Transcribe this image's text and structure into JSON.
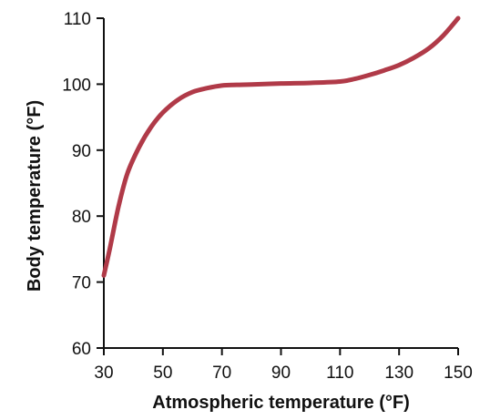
{
  "chart_data": {
    "type": "line",
    "xlabel": "Atmospheric temperature (°F)",
    "ylabel": "Body temperature (°F)",
    "xlim": [
      30,
      150
    ],
    "ylim": [
      60,
      110
    ],
    "x_ticks": [
      30,
      50,
      70,
      90,
      110,
      130,
      150
    ],
    "y_ticks": [
      60,
      70,
      80,
      90,
      100,
      110
    ],
    "x_tick_labels": [
      "30",
      "50",
      "70",
      "90",
      "110",
      "130",
      "150"
    ],
    "y_tick_labels": [
      "60",
      "70",
      "80",
      "90",
      "100",
      "110"
    ],
    "grid": false,
    "legend": "none",
    "colors": {
      "curve": "#b03a48",
      "axis": "#111111"
    },
    "series": [
      {
        "x": [
          30,
          32,
          35,
          38,
          42,
          46,
          50,
          55,
          60,
          65,
          70,
          75,
          80,
          90,
          100,
          110,
          115,
          120,
          125,
          130,
          135,
          140,
          145,
          150
        ],
        "y": [
          71,
          75,
          81.5,
          86.5,
          90.5,
          93.5,
          95.7,
          97.6,
          98.8,
          99.4,
          99.8,
          99.9,
          99.95,
          100.1,
          100.2,
          100.4,
          100.8,
          101.4,
          102.1,
          102.9,
          104,
          105.4,
          107.4,
          110
        ]
      }
    ]
  }
}
